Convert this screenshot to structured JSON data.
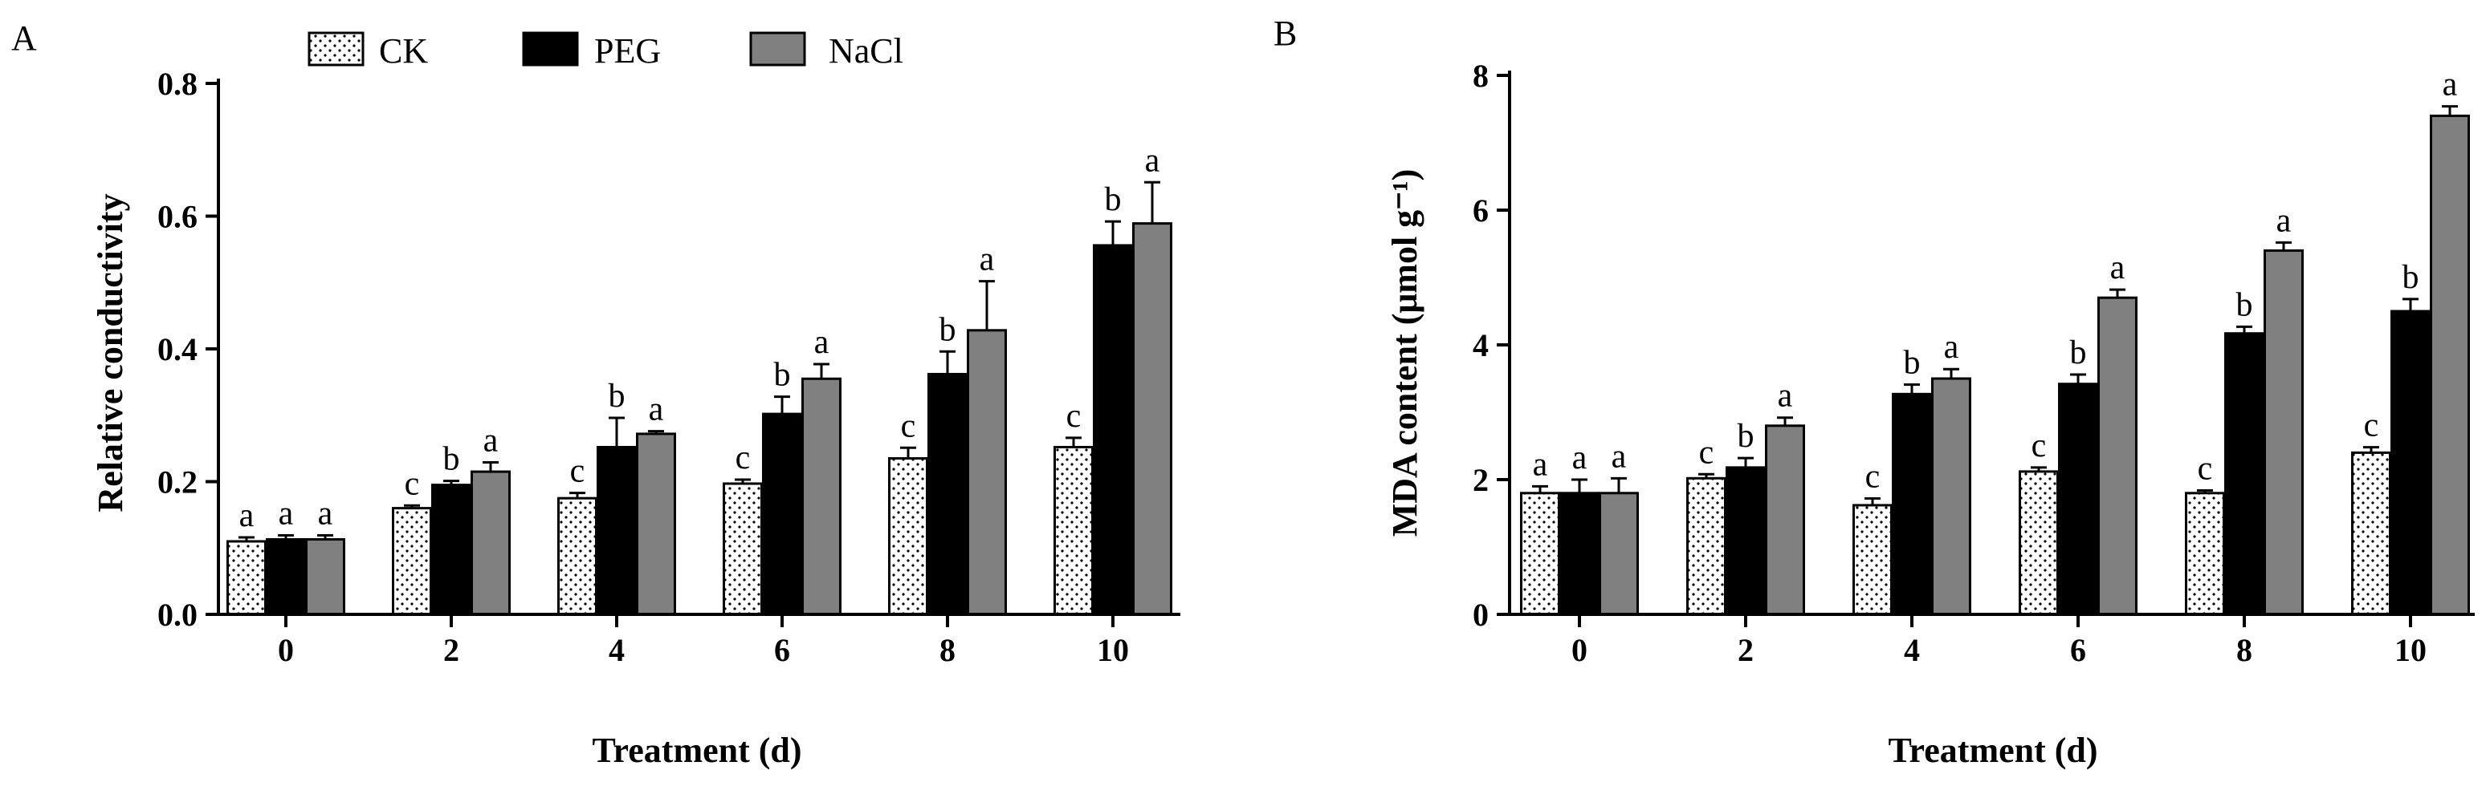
{
  "legend": [
    {
      "name": "CK",
      "fill": "dots"
    },
    {
      "name": "PEG",
      "fill": "#000000"
    },
    {
      "name": "NaCl",
      "fill": "#808080"
    }
  ],
  "colors": {
    "CK": "#ffffff",
    "PEG": "#000000",
    "NaCl": "#808080",
    "axis": "#000000"
  },
  "chart_data": [
    {
      "type": "bar",
      "panel_label": "A",
      "title": "",
      "xlabel": "Treatment (d)",
      "ylabel": "Relative conductivity",
      "categories": [
        "0",
        "2",
        "4",
        "6",
        "8",
        "10"
      ],
      "ylim": [
        0,
        0.8
      ],
      "yticks": [
        "0.0",
        "0.2",
        "0.4",
        "0.6",
        "0.8"
      ],
      "yticks_values": [
        0,
        0.2,
        0.4,
        0.6,
        0.8
      ],
      "series": [
        {
          "name": "CK",
          "values": [
            0.11,
            0.16,
            0.175,
            0.197,
            0.235,
            0.252
          ],
          "errors": [
            0.006,
            0.004,
            0.008,
            0.006,
            0.016,
            0.014
          ],
          "labels": [
            "a",
            "c",
            "c",
            "c",
            "c",
            "c"
          ]
        },
        {
          "name": "PEG",
          "values": [
            0.113,
            0.195,
            0.252,
            0.302,
            0.362,
            0.556
          ],
          "errors": [
            0.006,
            0.006,
            0.044,
            0.026,
            0.034,
            0.036
          ],
          "labels": [
            "a",
            "b",
            "b",
            "b",
            "b",
            "b"
          ]
        },
        {
          "name": "NaCl",
          "values": [
            0.113,
            0.215,
            0.272,
            0.355,
            0.428,
            0.589
          ],
          "errors": [
            0.006,
            0.014,
            0.004,
            0.022,
            0.074,
            0.062
          ],
          "labels": [
            "a",
            "a",
            "a",
            "a",
            "a",
            "a"
          ]
        }
      ]
    },
    {
      "type": "bar",
      "panel_label": "B",
      "title": "",
      "xlabel": "Treatment (d)",
      "ylabel": "MDA content (μmol g⁻¹)",
      "categories": [
        "0",
        "2",
        "4",
        "6",
        "8",
        "10"
      ],
      "ylim": [
        0,
        8
      ],
      "yticks": [
        "0",
        "2",
        "4",
        "6",
        "8"
      ],
      "yticks_values": [
        0,
        2,
        4,
        6,
        8
      ],
      "series": [
        {
          "name": "CK",
          "values": [
            1.8,
            2.02,
            1.62,
            2.12,
            1.8,
            2.4
          ],
          "errors": [
            0.1,
            0.06,
            0.1,
            0.06,
            0.04,
            0.08
          ],
          "labels": [
            "a",
            "c",
            "c",
            "c",
            "c",
            "c"
          ]
        },
        {
          "name": "PEG",
          "values": [
            1.8,
            2.18,
            3.27,
            3.42,
            4.17,
            4.5
          ],
          "errors": [
            0.2,
            0.14,
            0.14,
            0.14,
            0.1,
            0.18
          ],
          "labels": [
            "a",
            "b",
            "b",
            "b",
            "b",
            "b"
          ]
        },
        {
          "name": "NaCl",
          "values": [
            1.8,
            2.8,
            3.5,
            4.7,
            5.4,
            7.4
          ],
          "errors": [
            0.22,
            0.12,
            0.14,
            0.12,
            0.12,
            0.14
          ],
          "labels": [
            "a",
            "a",
            "a",
            "a",
            "a",
            "a"
          ]
        }
      ]
    }
  ]
}
